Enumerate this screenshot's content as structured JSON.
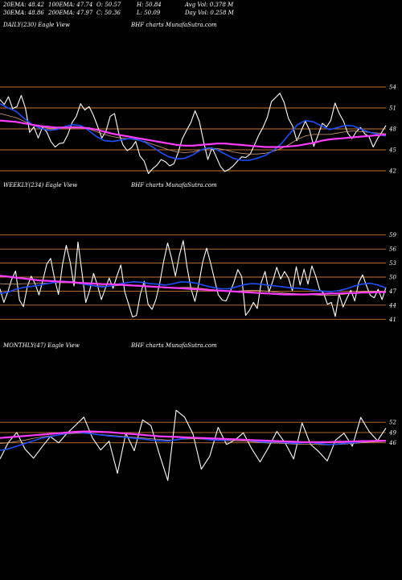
{
  "header": {
    "ema20": "20EMA: 48.42",
    "ema100": "100EMA: 47.74",
    "open": "O: 50.57",
    "high": "H: 50.84",
    "avg_vol": "Avg Vol: 0.378  M",
    "ema30": "30EMA: 48.86",
    "ema200": "200EMA: 47.97",
    "close": "C: 50.36",
    "low": "L: 50.09",
    "day_vol": "Day Vol: 0.258  M"
  },
  "colors": {
    "background": "#000000",
    "price": "#ffffff",
    "grid": "#c87533",
    "ema_fast": "#1e4fff",
    "ema_slow": "#ff3cff",
    "ema_mid": "#d2a07a"
  },
  "chart_data": [
    {
      "type": "line",
      "label": "DAILY(230) Eagle  View",
      "watermark": "BHF charts MunafaSutra.com",
      "yticks": [
        54,
        51,
        48,
        45,
        42
      ],
      "ylim": [
        40.5,
        55.5
      ],
      "grid": true,
      "series": [
        {
          "role": "price",
          "values": [
            52.2,
            51.5,
            52.6,
            50.9,
            51.2,
            52.8,
            51.0,
            47.5,
            48.3,
            46.7,
            48.2,
            47.6,
            46.2,
            45.4,
            45.9,
            46.0,
            47.2,
            48.9,
            49.8,
            51.6,
            50.7,
            51.2,
            50.0,
            48.4,
            46.7,
            47.7,
            49.8,
            50.2,
            47.4,
            45.7,
            44.9,
            45.3,
            46.2,
            44.1,
            43.4,
            41.6,
            42.3,
            42.8,
            43.6,
            43.3,
            42.7,
            43.0,
            44.6,
            46.6,
            47.8,
            48.9,
            50.6,
            49.1,
            46.2,
            43.6,
            45.3,
            44.0,
            42.6,
            41.9,
            42.2,
            42.7,
            43.4,
            44.0,
            43.9,
            44.4,
            45.7,
            47.1,
            48.2,
            49.6,
            51.9,
            52.5,
            53.1,
            51.8,
            49.5,
            48.4,
            46.3,
            47.7,
            49.1,
            47.8,
            45.5,
            47.1,
            48.8,
            48.3,
            49.2,
            51.7,
            50.2,
            49.1,
            47.4,
            46.6,
            47.6,
            48.2,
            47.3,
            46.9,
            45.4,
            46.6,
            47.5,
            48.5
          ]
        },
        {
          "role": "ema_fast",
          "values": [
            51.6,
            51.0,
            50.5,
            49.5,
            48.6,
            48.1,
            47.8,
            47.9,
            48.3,
            48.6,
            48.5,
            47.8,
            46.9,
            46.3,
            46.2,
            46.4,
            46.6,
            46.5,
            46.1,
            45.4,
            44.6,
            44.0,
            43.7,
            43.8,
            44.3,
            45.0,
            45.3,
            45.0,
            44.4,
            43.8,
            43.5,
            43.5,
            43.8,
            44.2,
            44.9,
            45.9,
            47.3,
            48.6,
            49.2,
            49.0,
            48.4,
            47.9,
            48.2,
            48.5,
            48.4,
            47.9,
            47.5,
            47.2,
            47.0
          ]
        },
        {
          "role": "ema_slow",
          "values": [
            49.2,
            49.1,
            49.0,
            48.8,
            48.6,
            48.4,
            48.3,
            48.2,
            48.2,
            48.2,
            48.2,
            48.1,
            47.9,
            47.6,
            47.3,
            47.1,
            46.9,
            46.7,
            46.5,
            46.3,
            46.1,
            45.9,
            45.7,
            45.6,
            45.6,
            45.7,
            45.8,
            45.9,
            45.9,
            45.8,
            45.7,
            45.6,
            45.5,
            45.4,
            45.4,
            45.4,
            45.5,
            45.6,
            45.8,
            46.0,
            46.3,
            46.5,
            46.6,
            46.7,
            46.8,
            46.9,
            47.0,
            47.1,
            47.2
          ]
        },
        {
          "role": "ema_mid",
          "values": [
            50.2,
            49.9,
            49.6,
            49.1,
            48.6,
            48.3,
            48.1,
            48.1,
            48.2,
            48.3,
            48.3,
            48.0,
            47.6,
            47.2,
            46.9,
            46.7,
            46.6,
            46.4,
            46.2,
            45.8,
            45.4,
            45.0,
            44.7,
            44.6,
            44.7,
            45.0,
            45.2,
            45.2,
            45.0,
            44.7,
            44.5,
            44.4,
            44.4,
            44.5,
            44.8,
            45.2,
            45.8,
            46.5,
            47.0,
            47.2,
            47.2,
            47.2,
            47.4,
            47.6,
            47.7,
            47.6,
            47.5,
            47.4,
            47.3
          ]
        }
      ]
    },
    {
      "type": "line",
      "label": "WEEKLY(234) Eagle  View",
      "watermark": "BHF charts MunafaSutra.com",
      "yticks": [
        59,
        56,
        53,
        50,
        47,
        44,
        41
      ],
      "ylim": [
        39.5,
        60.5
      ],
      "grid": true,
      "series": [
        {
          "role": "price",
          "values": [
            47.5,
            44.6,
            46.8,
            49.5,
            51.3,
            45.1,
            43.7,
            47.9,
            50.2,
            48.6,
            46.2,
            49.3,
            52.8,
            54.0,
            49.6,
            46.3,
            52.5,
            56.8,
            53.2,
            48.1,
            57.5,
            51.2,
            44.6,
            47.1,
            50.8,
            48.3,
            45.2,
            47.5,
            49.8,
            47.6,
            50.3,
            52.6,
            46.8,
            44.2,
            41.5,
            41.8,
            46.3,
            49.1,
            44.2,
            43.1,
            45.2,
            48.8,
            53.4,
            57.3,
            54.1,
            50.2,
            54.6,
            57.8,
            52.1,
            47.5,
            44.8,
            48.6,
            53.2,
            56.2,
            53.1,
            49.6,
            46.2,
            45.1,
            44.9,
            46.8,
            48.9,
            51.6,
            50.1,
            41.8,
            42.9,
            44.6,
            43.3,
            48.8,
            51.2,
            46.8,
            49.2,
            52.1,
            49.6,
            51.2,
            49.8,
            47.1,
            52.2,
            48.3,
            51.7,
            48.5,
            52.4,
            50.2,
            47.3,
            46.6,
            44.2,
            44.6,
            41.6,
            46.4,
            43.6,
            45.5,
            47.2,
            44.9,
            48.8,
            50.5,
            48.2,
            46.1,
            45.6,
            47.4,
            45.2,
            47.8
          ]
        },
        {
          "role": "ema_fast",
          "values": [
            46.5,
            46.8,
            47.4,
            47.8,
            48.0,
            48.3,
            48.6,
            48.9,
            49.1,
            49.0,
            48.7,
            48.4,
            48.1,
            47.9,
            48.1,
            48.5,
            48.8,
            49.0,
            48.9,
            48.6,
            48.5,
            48.3,
            48.6,
            49.0,
            48.9,
            48.7,
            48.2,
            47.8,
            47.5,
            47.5,
            47.9,
            48.4,
            48.6,
            48.5,
            48.3,
            48.1,
            47.9,
            47.7,
            47.6,
            47.4,
            47.2,
            47.0,
            46.9,
            47.1,
            47.5,
            48.1,
            48.5,
            48.7,
            48.3,
            47.7
          ]
        },
        {
          "role": "ema_slow",
          "values": [
            50.3,
            50.1,
            49.9,
            49.7,
            49.5,
            49.3,
            49.2,
            49.1,
            49.0,
            48.9,
            48.8,
            48.7,
            48.6,
            48.5,
            48.5,
            48.4,
            48.3,
            48.2,
            48.1,
            48.0,
            47.9,
            47.8,
            47.7,
            47.6,
            47.5,
            47.4,
            47.3,
            47.2,
            47.1,
            47.0,
            46.9,
            46.8,
            46.7,
            46.6,
            46.5,
            46.4,
            46.3,
            46.3,
            46.3,
            46.3,
            46.4,
            46.4,
            46.5,
            46.5,
            46.6,
            46.6,
            46.7,
            46.7,
            46.8,
            46.8
          ]
        },
        {
          "role": "ema_mid",
          "values": [
            48.6,
            48.5,
            48.5,
            48.6,
            48.6,
            48.7,
            48.7,
            48.8,
            48.8,
            48.8,
            48.6,
            48.4,
            48.2,
            48.1,
            48.1,
            48.2,
            48.3,
            48.3,
            48.2,
            48.0,
            47.8,
            47.7,
            47.7,
            47.8,
            47.8,
            47.7,
            47.5,
            47.3,
            47.1,
            47.0,
            47.0,
            47.1,
            47.2,
            47.1,
            47.0,
            46.8,
            46.6,
            46.5,
            46.4,
            46.3,
            46.2,
            46.1,
            46.1,
            46.2,
            46.4,
            46.7,
            46.9,
            47.0,
            47.0,
            46.9
          ]
        }
      ]
    },
    {
      "type": "line",
      "label": "MONTHLY(47) Eagle  View",
      "watermark": "BHF charts MunafaSutra.com",
      "yticks": [
        52,
        49,
        46
      ],
      "ylim": [
        33.0,
        56.5
      ],
      "grid": true,
      "series": [
        {
          "role": "price",
          "values": [
            41.3,
            46.1,
            49.0,
            44.1,
            41.5,
            44.8,
            47.8,
            46.0,
            48.8,
            51.1,
            53.5,
            47.5,
            43.9,
            46.5,
            37.1,
            48.8,
            43.7,
            52.7,
            51.0,
            42.6,
            35.0,
            55.5,
            53.5,
            48.6,
            38.3,
            42.1,
            50.5,
            45.5,
            46.8,
            48.9,
            44.3,
            40.4,
            44.6,
            49.3,
            45.9,
            41.3,
            51.8,
            45.6,
            43.4,
            40.7,
            46.8,
            48.8,
            45.0,
            53.4,
            49.3,
            46.6,
            50.3
          ]
        },
        {
          "role": "ema_fast",
          "values": [
            43.8,
            44.2,
            45.0,
            45.8,
            46.6,
            47.4,
            47.8,
            48.3,
            48.8,
            49.1,
            48.9,
            48.6,
            48.3,
            48.0,
            47.8,
            47.6,
            47.3,
            47.1,
            46.8,
            46.6,
            46.5,
            46.9,
            47.3,
            47.5,
            47.3,
            46.9,
            46.7,
            46.8,
            47.0,
            46.9,
            46.6,
            46.3,
            46.2,
            46.3,
            46.1,
            45.8,
            46.0,
            46.1,
            45.8,
            45.5,
            45.6,
            45.8,
            46.0,
            46.3,
            46.5,
            46.6,
            46.7
          ]
        },
        {
          "role": "ema_slow",
          "values": [
            47.4,
            47.6,
            47.8,
            48.0,
            48.2,
            48.4,
            48.6,
            48.8,
            49.0,
            49.2,
            49.3,
            49.3,
            49.2,
            49.1,
            48.9,
            48.7,
            48.5,
            48.3,
            48.1,
            47.9,
            47.8,
            47.7,
            47.6,
            47.5,
            47.4,
            47.3,
            47.2,
            47.1,
            47.0,
            46.9,
            46.8,
            46.7,
            46.6,
            46.5,
            46.4,
            46.3,
            46.2,
            46.2,
            46.2,
            46.2,
            46.3,
            46.3,
            46.4,
            46.5,
            46.5,
            46.6,
            46.6
          ]
        },
        {
          "role": "ema_mid",
          "values": [
            45.8,
            46.0,
            46.4,
            46.8,
            47.3,
            47.7,
            48.0,
            48.3,
            48.6,
            48.8,
            48.8,
            48.6,
            48.4,
            48.2,
            48.0,
            47.8,
            47.6,
            47.4,
            47.2,
            47.0,
            46.8,
            46.9,
            47.1,
            47.2,
            47.1,
            46.9,
            46.7,
            46.6,
            46.6,
            46.5,
            46.3,
            46.1,
            45.9,
            45.9,
            45.8,
            45.6,
            45.6,
            45.6,
            45.5,
            45.4,
            45.5,
            45.6,
            45.8,
            46.0,
            46.2,
            46.3,
            46.4
          ]
        }
      ]
    }
  ]
}
